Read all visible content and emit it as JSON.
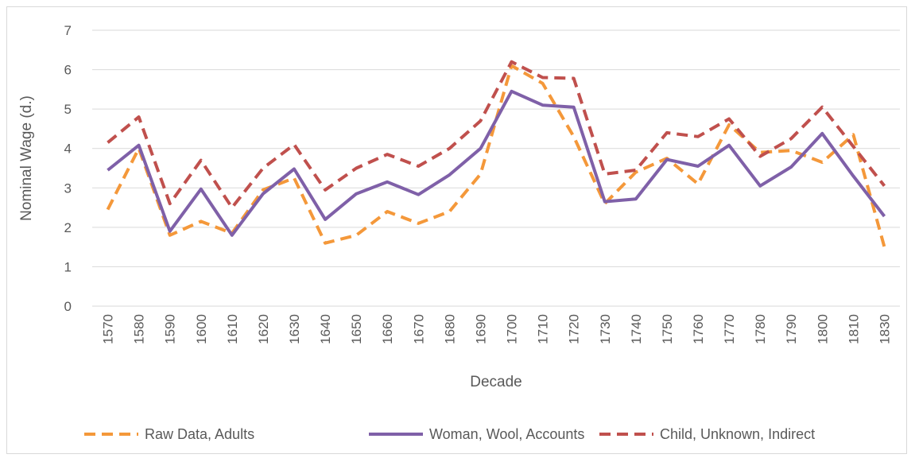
{
  "chart_data": {
    "type": "line",
    "title": "",
    "xlabel": "Decade",
    "ylabel": "Nominal Wage (d.)",
    "ylim": [
      0,
      7
    ],
    "yticks": [
      "0",
      "1",
      "2",
      "3",
      "4",
      "5",
      "6",
      "7"
    ],
    "grid": true,
    "legend_position": "bottom",
    "categories": [
      "1570",
      "1580",
      "1590",
      "1600",
      "1610",
      "1620",
      "1630",
      "1640",
      "1650",
      "1660",
      "1670",
      "1680",
      "1690",
      "1700",
      "1710",
      "1720",
      "1730",
      "1740",
      "1750",
      "1760",
      "1770",
      "1780",
      "1790",
      "1800",
      "1810",
      "1830"
    ],
    "series": [
      {
        "name": "Raw Data, Adults",
        "color": "#f4983a",
        "style": "dashed",
        "values": [
          2.45,
          4.0,
          1.8,
          2.15,
          1.85,
          2.95,
          3.25,
          1.6,
          1.8,
          2.4,
          2.1,
          2.4,
          3.35,
          6.1,
          5.65,
          4.3,
          2.6,
          3.4,
          3.75,
          3.1,
          4.6,
          3.9,
          3.95,
          3.65,
          4.35,
          1.5
        ]
      },
      {
        "name": "Woman, Wool, Accounts",
        "color": "#7f60a8",
        "style": "solid",
        "values": [
          3.45,
          4.08,
          1.9,
          2.97,
          1.8,
          2.85,
          3.48,
          2.2,
          2.85,
          3.15,
          2.83,
          3.33,
          4.0,
          5.45,
          5.1,
          5.05,
          2.65,
          2.72,
          3.72,
          3.55,
          4.08,
          3.05,
          3.53,
          4.38,
          3.3,
          2.28
        ]
      },
      {
        "name": "Child, Unknown, Indirect",
        "color": "#c0504d",
        "style": "dashed",
        "values": [
          4.15,
          4.8,
          2.6,
          3.7,
          2.5,
          3.5,
          4.1,
          2.95,
          3.5,
          3.85,
          3.55,
          4.0,
          4.7,
          6.2,
          5.8,
          5.78,
          3.35,
          3.45,
          4.4,
          4.3,
          4.75,
          3.8,
          4.25,
          5.05,
          4.05,
          3.05
        ]
      }
    ]
  }
}
